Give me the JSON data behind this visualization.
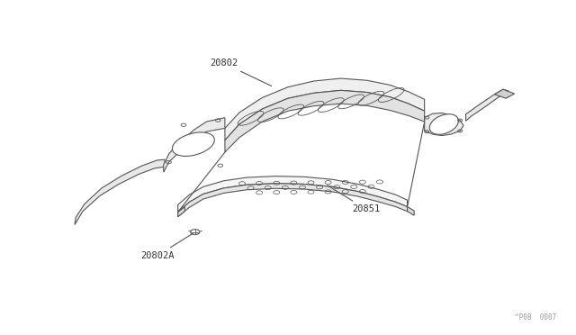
{
  "background_color": "#ffffff",
  "line_color": "#555555",
  "label_color": "#333333",
  "ref_text": "^P08  0007",
  "fig_width": 6.4,
  "fig_height": 3.72,
  "dpi": 100
}
